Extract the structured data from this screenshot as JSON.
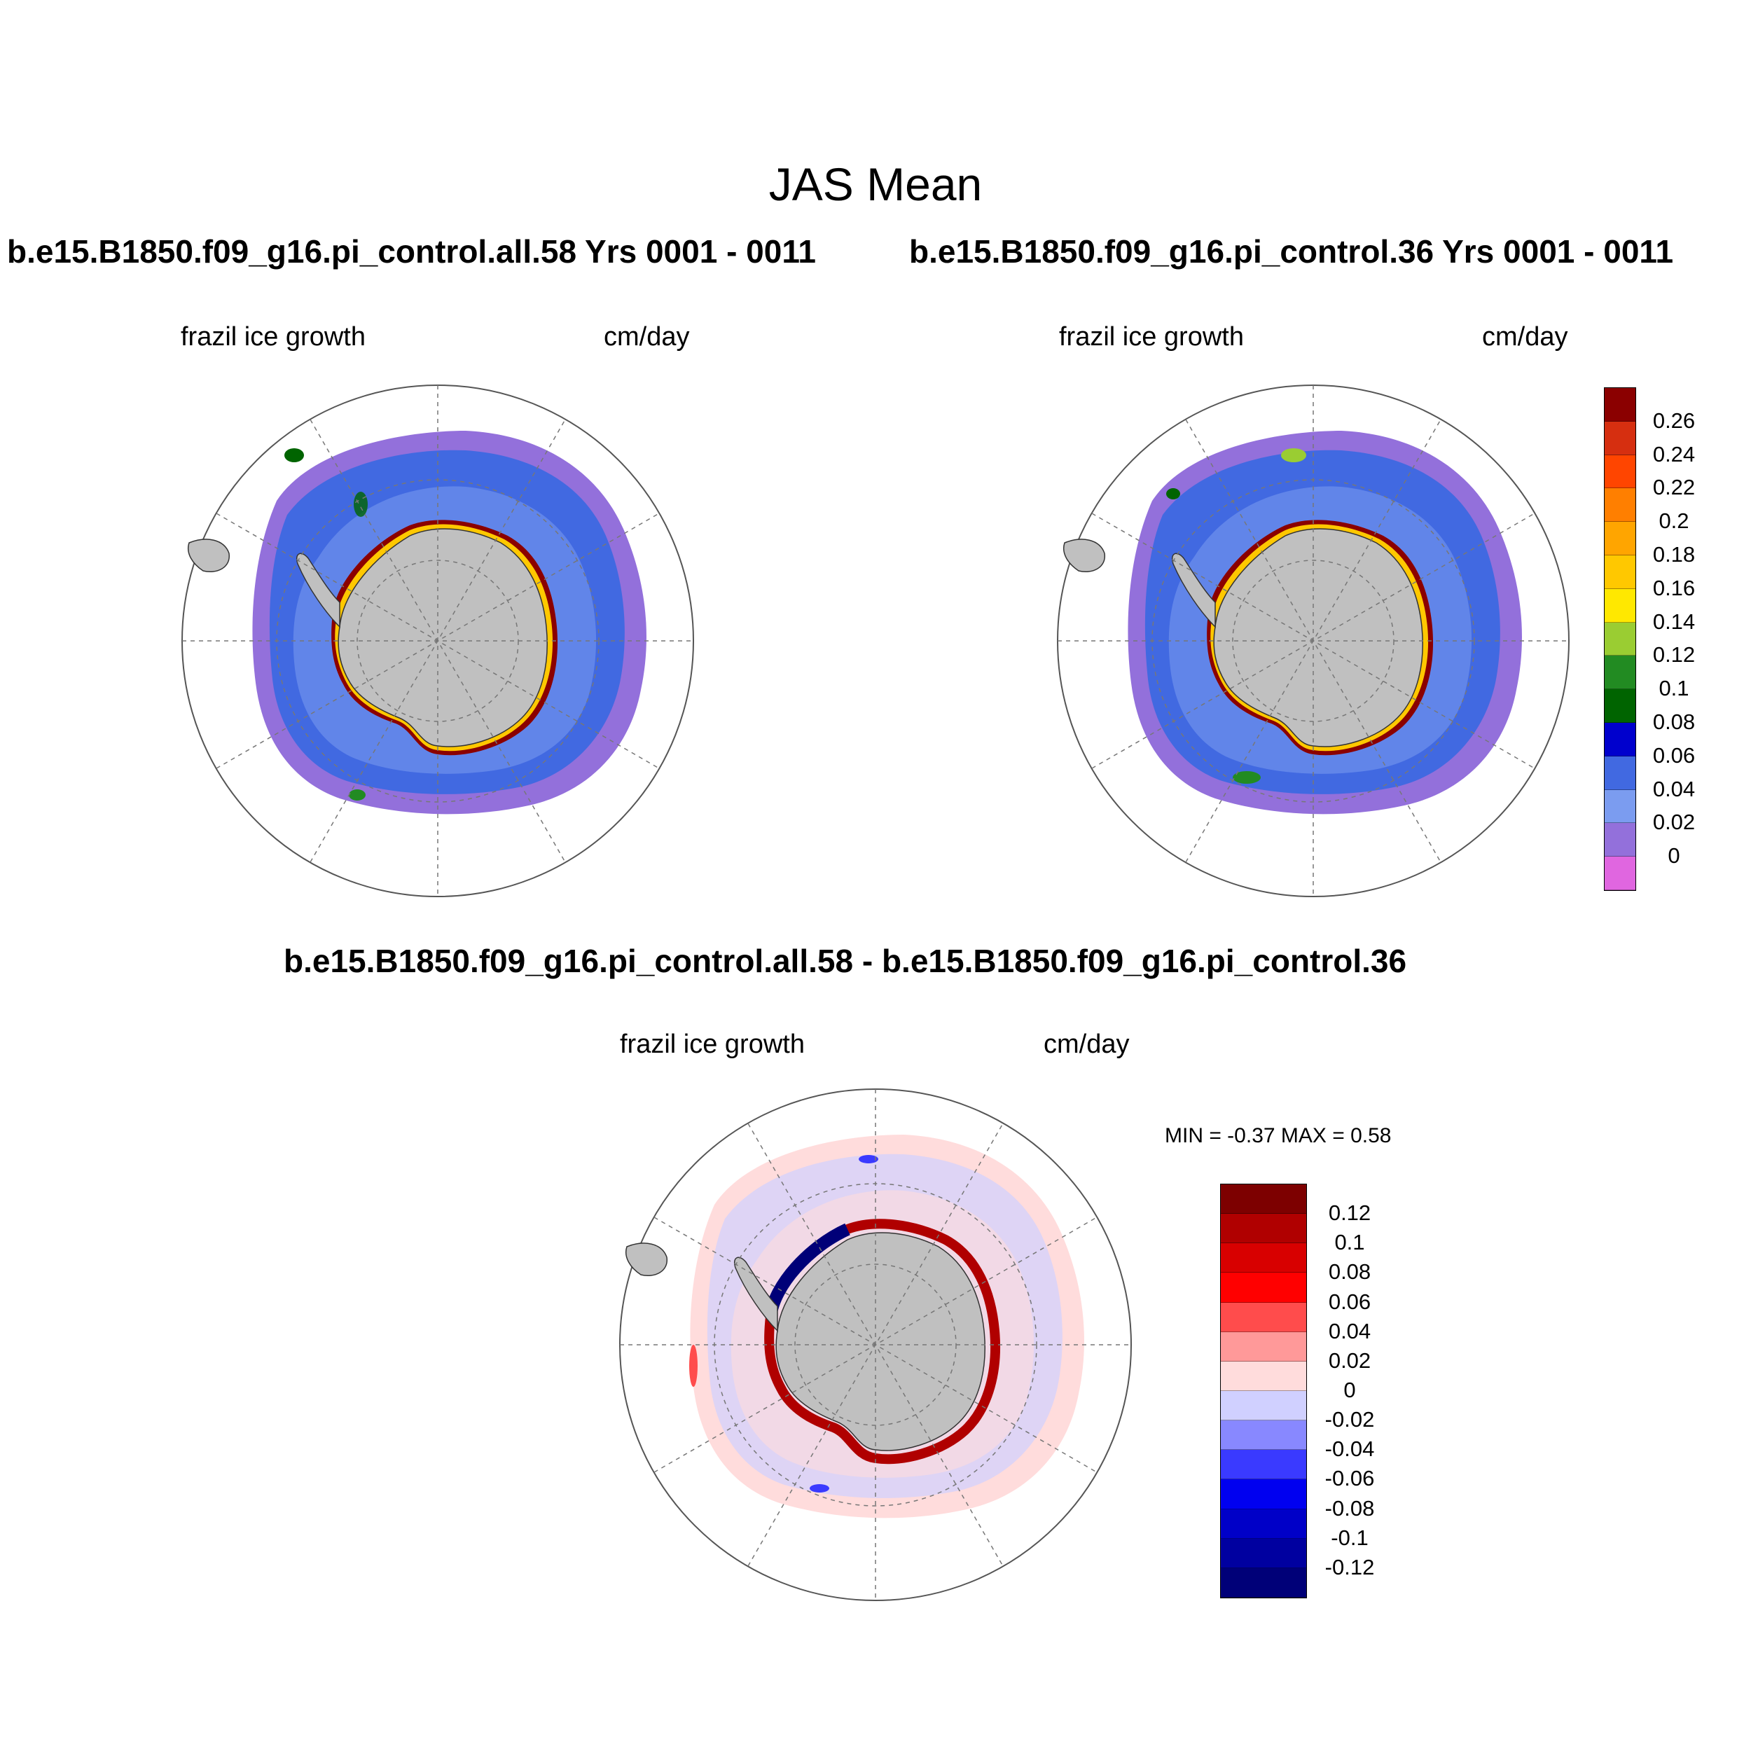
{
  "title": "JAS Mean",
  "panels": [
    {
      "case_title": "b.e15.B1850.f09_g16.pi_control.all.58  Yrs 0001 - 0011",
      "variable": "frazil ice growth",
      "units": "cm/day"
    },
    {
      "case_title": "b.e15.B1850.f09_g16.pi_control.36  Yrs 0001 - 0011",
      "variable": "frazil ice growth",
      "units": "cm/day"
    },
    {
      "case_title": "b.e15.B1850.f09_g16.pi_control.all.58 - b.e15.B1850.f09_g16.pi_control.36",
      "variable": "frazil ice growth",
      "units": "cm/day",
      "min_max": "MIN =  -0.37 MAX =   0.58"
    }
  ],
  "colorbar_main": {
    "labels": [
      "0.26",
      "0.24",
      "0.22",
      "0.2",
      "0.18",
      "0.16",
      "0.14",
      "0.12",
      "0.1",
      "0.08",
      "0.06",
      "0.04",
      "0.02",
      "0"
    ],
    "colors": [
      "#8b0000",
      "#d62f10",
      "#ff4500",
      "#ff7f00",
      "#ffa500",
      "#ffc800",
      "#ffe800",
      "#9acd32",
      "#228b22",
      "#006400",
      "#0000cd",
      "#4169e1",
      "#7b9cf0",
      "#9370db",
      "#e066e0"
    ]
  },
  "colorbar_diff": {
    "labels": [
      "0.12",
      "0.1",
      "0.08",
      "0.06",
      "0.04",
      "0.02",
      "0",
      "-0.02",
      "-0.04",
      "-0.06",
      "-0.08",
      "-0.1",
      "-0.12"
    ],
    "colors": [
      "#7d0000",
      "#b00000",
      "#d80000",
      "#ff0000",
      "#ff4c4c",
      "#ff9999",
      "#ffdcdc",
      "#d0d0ff",
      "#8888ff",
      "#3a3aff",
      "#0000f0",
      "#0000c8",
      "#0000a0",
      "#000078"
    ]
  },
  "map_colors": {
    "land": "#c0c0c0",
    "ocean": "#ffffff"
  }
}
